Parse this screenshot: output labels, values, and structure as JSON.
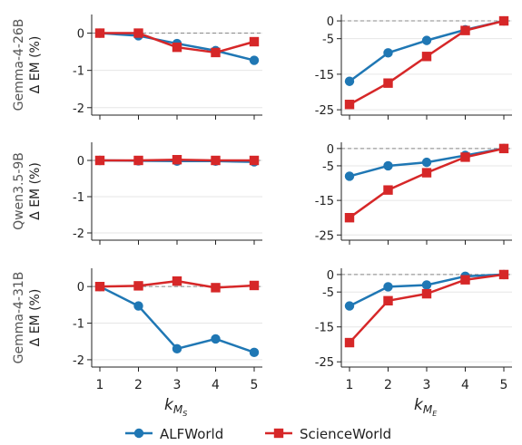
{
  "figure": {
    "x_values": [
      1,
      2,
      3,
      4,
      5
    ],
    "x_tick_labels": [
      "1",
      "2",
      "3",
      "4",
      "5"
    ],
    "left_xlabel": {
      "base": "k",
      "sub": "M",
      "subsub": "S"
    },
    "right_xlabel": {
      "base": "k",
      "sub": "M",
      "subsub": "E"
    },
    "ylabel": "Δ EM (%)",
    "legend": {
      "position": "bottom-center"
    },
    "colors": {
      "ALFWorld": "#1f77b4",
      "ScienceWorld": "#d62728",
      "reference_line": "#888888"
    }
  },
  "chart_data": [
    {
      "type": "line",
      "row": 0,
      "col": 0,
      "row_label": "Gemma-4-26B",
      "ylim": [
        -2.2,
        0.5
      ],
      "yticks": [
        0,
        -1,
        -2
      ],
      "reference_line": 0,
      "series": [
        {
          "name": "ALFWorld",
          "marker": "circle",
          "values": [
            0,
            -0.07,
            -0.28,
            -0.47,
            -0.73
          ]
        },
        {
          "name": "ScienceWorld",
          "marker": "square",
          "values": [
            0,
            0,
            -0.38,
            -0.52,
            -0.23
          ]
        }
      ]
    },
    {
      "type": "line",
      "row": 0,
      "col": 1,
      "row_label": "Gemma-4-26B",
      "ylim": [
        -26.5,
        1.8
      ],
      "yticks": [
        0,
        -5,
        -15,
        -25
      ],
      "reference_line": 0,
      "series": [
        {
          "name": "ALFWorld",
          "marker": "circle",
          "values": [
            -17,
            -9,
            -5.5,
            -2.5,
            0
          ]
        },
        {
          "name": "ScienceWorld",
          "marker": "square",
          "values": [
            -23.5,
            -17.5,
            -10,
            -2.7,
            0
          ]
        }
      ]
    },
    {
      "type": "line",
      "row": 1,
      "col": 0,
      "row_label": "Qwen3.5-9B",
      "ylim": [
        -2.2,
        0.5
      ],
      "yticks": [
        0,
        -1,
        -2
      ],
      "reference_line": 0,
      "series": [
        {
          "name": "ALFWorld",
          "marker": "circle",
          "values": [
            0,
            -0.01,
            -0.02,
            -0.02,
            -0.04
          ]
        },
        {
          "name": "ScienceWorld",
          "marker": "square",
          "values": [
            0,
            0,
            0.02,
            0,
            0
          ]
        }
      ]
    },
    {
      "type": "line",
      "row": 1,
      "col": 1,
      "row_label": "Qwen3.5-9B",
      "ylim": [
        -26.5,
        1.8
      ],
      "yticks": [
        0,
        -5,
        -15,
        -25
      ],
      "reference_line": 0,
      "series": [
        {
          "name": "ALFWorld",
          "marker": "circle",
          "values": [
            -8,
            -5,
            -4,
            -2,
            0
          ]
        },
        {
          "name": "ScienceWorld",
          "marker": "square",
          "values": [
            -20,
            -12,
            -7,
            -2.5,
            0
          ]
        }
      ]
    },
    {
      "type": "line",
      "row": 2,
      "col": 0,
      "row_label": "Gemma-4-31B",
      "ylim": [
        -2.2,
        0.5
      ],
      "yticks": [
        0,
        -1,
        -2
      ],
      "reference_line": 0,
      "series": [
        {
          "name": "ALFWorld",
          "marker": "circle",
          "values": [
            0,
            -0.53,
            -1.7,
            -1.43,
            -1.8
          ]
        },
        {
          "name": "ScienceWorld",
          "marker": "square",
          "values": [
            0,
            0.02,
            0.15,
            -0.03,
            0.03
          ]
        }
      ]
    },
    {
      "type": "line",
      "row": 2,
      "col": 1,
      "row_label": "Gemma-4-31B",
      "ylim": [
        -26.5,
        1.8
      ],
      "yticks": [
        0,
        -5,
        -15,
        -25
      ],
      "reference_line": 0,
      "series": [
        {
          "name": "ALFWorld",
          "marker": "circle",
          "values": [
            -9,
            -3.5,
            -3,
            -0.5,
            0
          ]
        },
        {
          "name": "ScienceWorld",
          "marker": "square",
          "values": [
            -19.5,
            -7.5,
            -5.5,
            -1.5,
            0
          ]
        }
      ]
    }
  ]
}
